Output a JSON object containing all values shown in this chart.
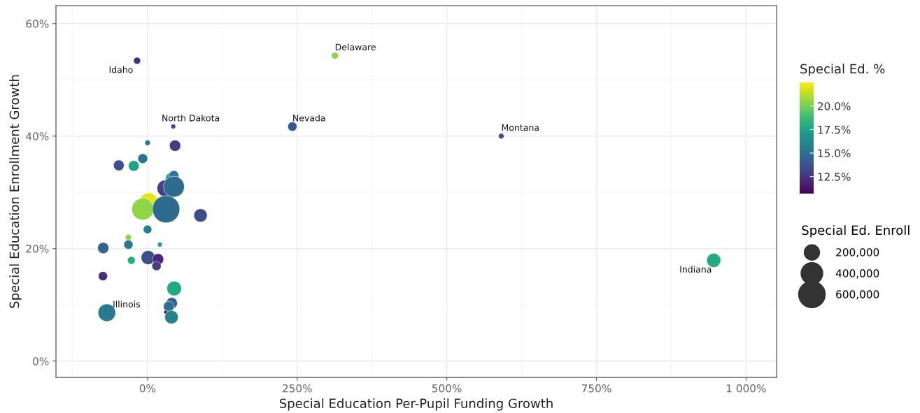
{
  "chart_data": {
    "type": "bubble",
    "xlabel": "Special Education Per-Pupil Funding Growth",
    "ylabel": "Special Education Enrollment Growth",
    "clabel": "Special Ed. %",
    "legend_title": "Special Ed. Enroll",
    "x": [
      -17.5,
      313,
      43,
      242,
      591,
      946,
      -68,
      0,
      46,
      -48,
      -23,
      -8,
      40.5,
      44,
      30,
      44,
      2,
      -8,
      31,
      88.5,
      0,
      -32,
      -32,
      20.7,
      -74,
      -27,
      1,
      17.5,
      15,
      -74.5,
      44.5,
      40.5,
      35.5,
      33,
      30,
      40
    ],
    "values": [
      53.4,
      54.3,
      41.7,
      41.7,
      40.0,
      17.9,
      8.6,
      38.8,
      38.3,
      34.8,
      34.7,
      36.0,
      32.4,
      33.0,
      30.7,
      31.0,
      28.3,
      27.0,
      27.0,
      25.9,
      23.4,
      22.0,
      20.7,
      20.7,
      20.1,
      17.9,
      18.4,
      18.1,
      16.9,
      15.1,
      12.9,
      10.3,
      9.7,
      8.5,
      8.7,
      7.8
    ],
    "sizes": [
      41000,
      40000,
      20000,
      70000,
      26000,
      165000,
      260000,
      26000,
      105000,
      95000,
      95000,
      80000,
      135000,
      80000,
      240000,
      370000,
      280000,
      400000,
      630000,
      150000,
      60000,
      33000,
      70000,
      20000,
      105000,
      50000,
      165000,
      105000,
      70000,
      70000,
      180000,
      105000,
      95000,
      20000,
      10000,
      150000
    ],
    "cvalues": [
      12.3,
      20.5,
      13.5,
      14,
      13.5,
      17.8,
      15.5,
      15.5,
      12.8,
      13.5,
      17.5,
      15.3,
      17.5,
      15.3,
      13,
      14.8,
      22,
      20.5,
      14.8,
      13.5,
      15.5,
      20.5,
      15.3,
      17.5,
      14.5,
      18,
      13.5,
      12,
      12.8,
      12.3,
      17.8,
      14.3,
      15,
      15.3,
      11,
      16
    ],
    "size_legend": [
      {
        "value": 200000,
        "label": "200,000"
      },
      {
        "value": 400000,
        "label": "400,000"
      },
      {
        "value": 600000,
        "label": "600,000"
      }
    ],
    "clim": [
      10.7,
      22.5
    ],
    "cticks": [
      {
        "value": 12.5,
        "label": "12.5%"
      },
      {
        "value": 15,
        "label": "15.0%"
      },
      {
        "value": 17.5,
        "label": "17.5%"
      },
      {
        "value": 20,
        "label": "20.0%"
      }
    ],
    "annotations": [
      {
        "text": "Idaho",
        "x": -17.5,
        "y": 53.4
      },
      {
        "text": "Delaware",
        "x": 313,
        "y": 54.3
      },
      {
        "text": "North Dakota",
        "x": 43,
        "y": 41.7
      },
      {
        "text": "Nevada",
        "x": 242,
        "y": 41.7
      },
      {
        "text": "Montana",
        "x": 591,
        "y": 40.0
      },
      {
        "text": "Indiana",
        "x": 946,
        "y": 17.9
      },
      {
        "text": "Illinois",
        "x": -68,
        "y": 8.6
      }
    ],
    "xlim": [
      -153,
      1051
    ],
    "ylim": [
      -2.9,
      63.2
    ],
    "xticks": [
      {
        "value": 0,
        "label": "0%"
      },
      {
        "value": 250,
        "label": "250%"
      },
      {
        "value": 500,
        "label": "500%"
      },
      {
        "value": 750,
        "label": "750%"
      },
      {
        "value": 1000,
        "label": "1 000%"
      }
    ],
    "yticks": [
      {
        "value": 0,
        "label": "0%"
      },
      {
        "value": 20,
        "label": "20%"
      },
      {
        "value": 40,
        "label": "40%"
      },
      {
        "value": 60,
        "label": "60%"
      }
    ],
    "grid": true,
    "marker": "circle"
  }
}
